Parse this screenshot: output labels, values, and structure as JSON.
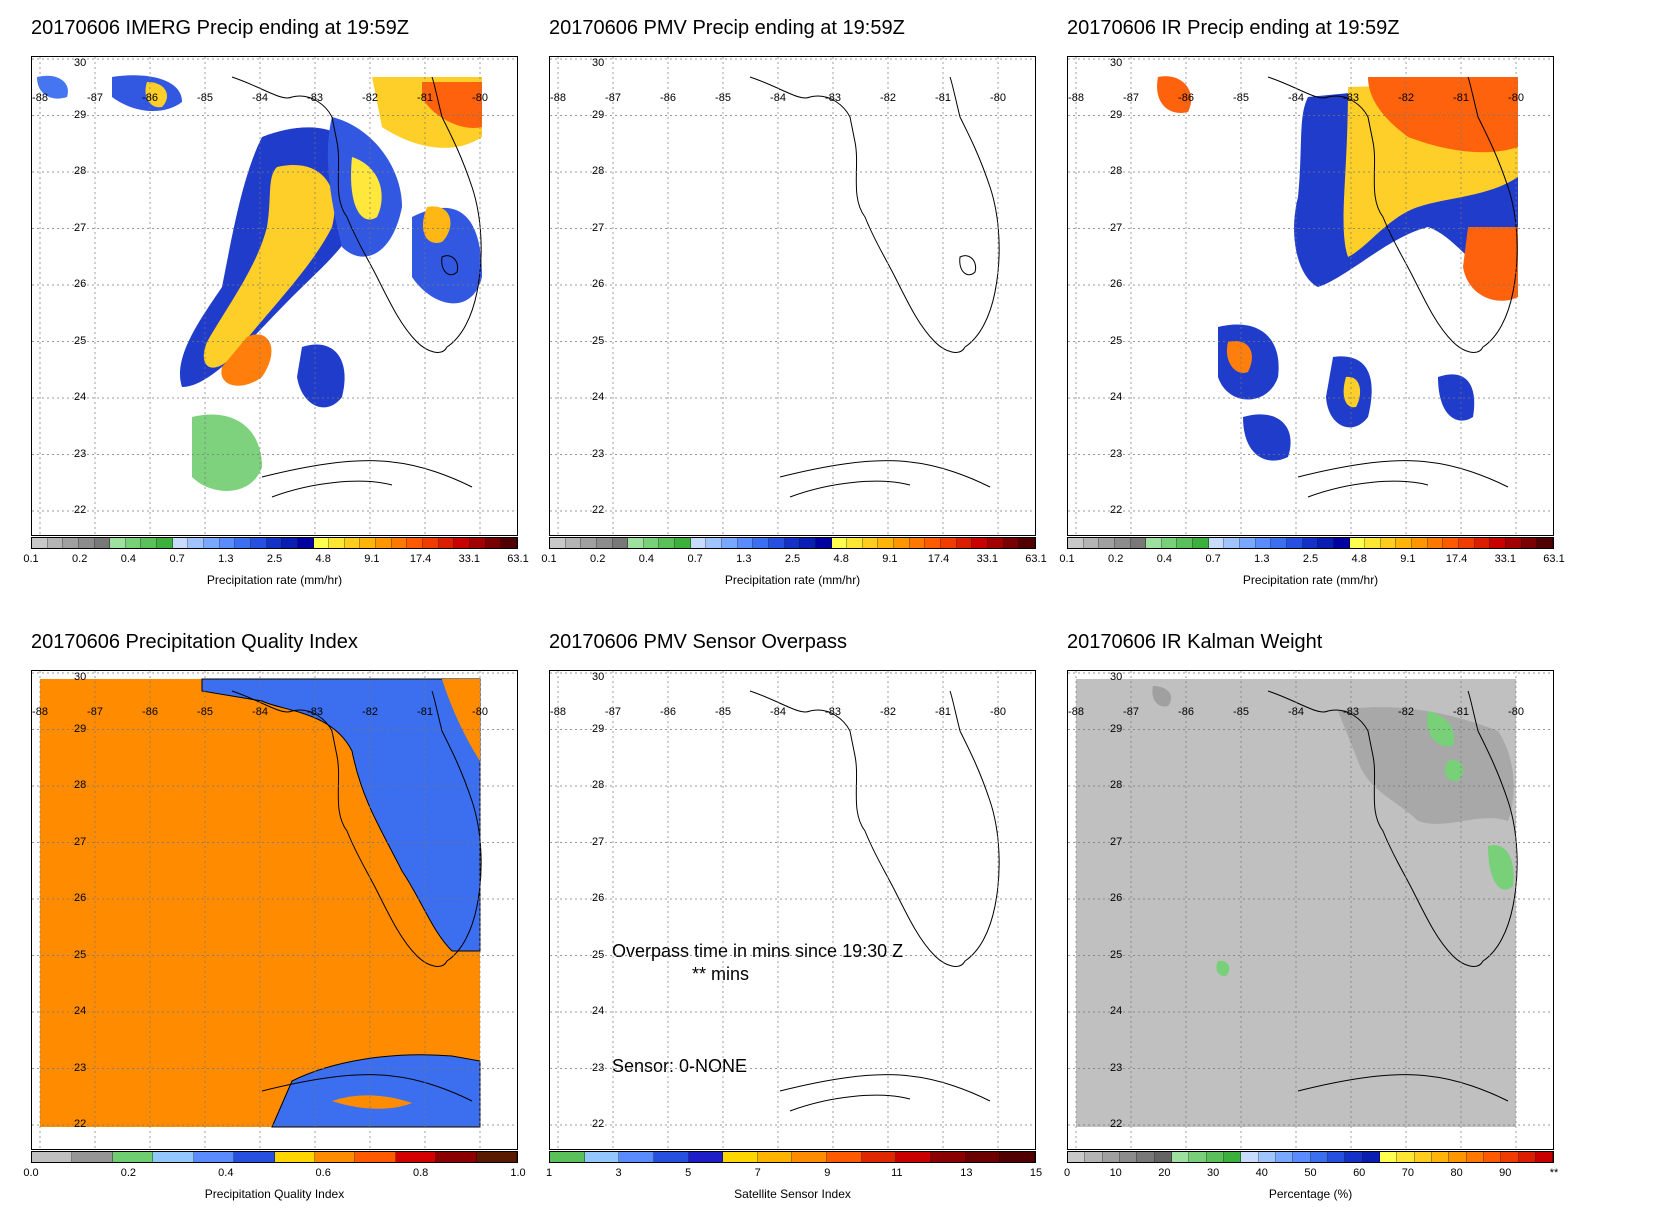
{
  "map": {
    "lons": [
      "-88",
      "-87",
      "-86",
      "-85",
      "-84",
      "-83",
      "-82",
      "-81",
      "-80"
    ],
    "lats": [
      "30",
      "29",
      "28",
      "27",
      "26",
      "25",
      "24",
      "23",
      "22"
    ]
  },
  "colorbars": {
    "precip": {
      "colors": [
        "#c8c8c8",
        "#b4b4b4",
        "#a0a0a0",
        "#8c8c8c",
        "#787878",
        "#9ee09e",
        "#78d078",
        "#5ac05a",
        "#3cb03c",
        "#c8dcff",
        "#a0c4ff",
        "#78a8ff",
        "#5a8cff",
        "#3c6ef0",
        "#2850e0",
        "#1432c8",
        "#0a1eb4",
        "#0000a0",
        "#ffff50",
        "#ffe632",
        "#ffcd1e",
        "#ffb40a",
        "#ff9600",
        "#ff7800",
        "#ff5a00",
        "#f03c00",
        "#dc1e00",
        "#c80000",
        "#a00000",
        "#780000",
        "#500000"
      ],
      "ticks": [
        "0.1",
        "0.2",
        "0.4",
        "0.7",
        "1.3",
        "2.5",
        "4.8",
        "9.1",
        "17.4",
        "33.1",
        "63.1"
      ],
      "label": "Precipitation rate (mm/hr)"
    },
    "pqi": {
      "colors": [
        "#c0c0c0",
        "#969696",
        "#6fce6f",
        "#93c8ff",
        "#5a8cff",
        "#2850e0",
        "#ffd700",
        "#ff8c00",
        "#ff5a00",
        "#d20000",
        "#8b0000",
        "#5a1a00"
      ],
      "ticks": [
        "0.0",
        "0.2",
        "0.4",
        "0.6",
        "0.8",
        "1.0"
      ],
      "label": "Precipitation Quality Index"
    },
    "sensor": {
      "colors": [
        "#5ac05a",
        "#93c8ff",
        "#5a8cff",
        "#2850e0",
        "#1e1ec8",
        "#ffd700",
        "#ffb400",
        "#ff8c00",
        "#ff5a00",
        "#e02800",
        "#c80000",
        "#8b0000",
        "#6a0000",
        "#500000"
      ],
      "ticks": [
        "1",
        "3",
        "5",
        "7",
        "9",
        "11",
        "13",
        "15"
      ],
      "label": "Satellite Sensor Index"
    },
    "kalman": {
      "colors": [
        "#c8c8c8",
        "#b4b4b4",
        "#a0a0a0",
        "#8c8c8c",
        "#787878",
        "#646464",
        "#9ee09e",
        "#78d078",
        "#5ac05a",
        "#3cb03c",
        "#c8dcff",
        "#a0c4ff",
        "#78a8ff",
        "#5a8cff",
        "#3c6ef0",
        "#2850e0",
        "#1432c8",
        "#0a1eb4",
        "#ffff50",
        "#ffe632",
        "#ffcd1e",
        "#ffb40a",
        "#ff9600",
        "#ff7800",
        "#ff5a00",
        "#f03c00",
        "#dc1e00",
        "#c80000"
      ],
      "ticks": [
        "0",
        "10",
        "20",
        "30",
        "40",
        "50",
        "60",
        "70",
        "80",
        "90",
        "**"
      ],
      "label": "Percentage (%)"
    }
  },
  "panels": [
    {
      "title": "20170606 IMERG Precip ending at 19:59Z",
      "colorbar": "precip"
    },
    {
      "title": "20170606 PMV Precip ending at 19:59Z",
      "colorbar": "precip"
    },
    {
      "title": "20170606 IR Precip ending at 19:59Z",
      "colorbar": "precip"
    },
    {
      "title": "20170606 Precipitation Quality Index",
      "colorbar": "pqi"
    },
    {
      "title": "20170606 PMV Sensor Overpass",
      "colorbar": "sensor",
      "overpass_line1": "Overpass time in mins since 19:30 Z",
      "overpass_line2": "** mins",
      "sensor_label": "Sensor:   0-NONE"
    },
    {
      "title": "20170606 IR Kalman Weight",
      "colorbar": "kalman"
    }
  ]
}
